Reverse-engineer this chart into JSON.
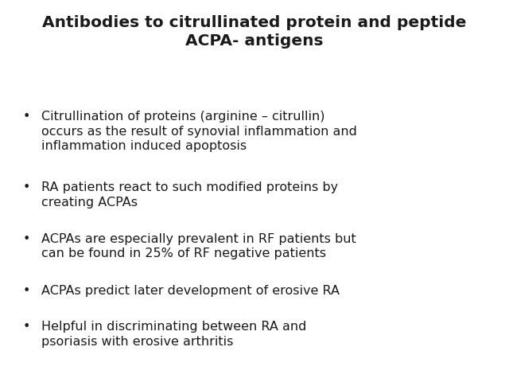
{
  "title_line1": "Antibodies to citrullinated protein and peptide",
  "title_line2": "ACPA- antigens",
  "bullet_points": [
    "Citrullination of proteins (arginine – citrullin)\noccurs as the result of synovial inflammation and\ninflammation induced apoptosis",
    "RA patients react to such modified proteins by\ncreating ACPAs",
    "ACPAs are especially prevalent in RF patients but\ncan be found in 25% of RF negative patients",
    "ACPAs predict later development of erosive RA",
    "Helpful in discriminating between RA and\npsoriasis with erosive arthritis"
  ],
  "background_color": "#ffffff",
  "text_color": "#1a1a1a",
  "title_fontsize": 14.5,
  "bullet_fontsize": 11.5,
  "bullet_color": "#1a1a1a",
  "fig_width": 6.4,
  "fig_height": 4.8,
  "dpi": 100
}
